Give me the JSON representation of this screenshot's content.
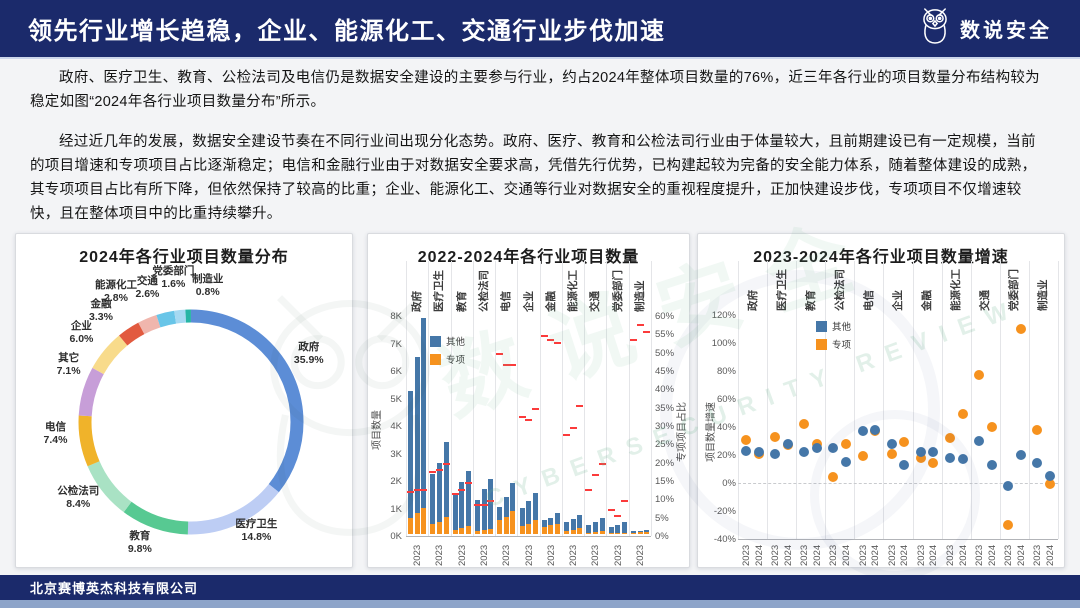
{
  "header": {
    "title": "领先行业增长趋稳，企业、能源化工、交通行业步伐加速",
    "brand": "数说安全"
  },
  "paragraphs": [
    "政府、医疗卫生、教育、公检法司及电信仍是数据安全建设的主要参与行业，约占2024年整体项目数量的76%，近三年各行业的项目数量分布结构较为稳定如图“2024年各行业项目数量分布”所示。",
    "经过近几年的发展，数据安全建设节奏在不同行业间出现分化态势。政府、医疗、教育和公检法司行业由于体量较大，且前期建设已有一定规模，当前的项目增速和专项项目占比逐渐稳定；电信和金融行业由于对数据安全要求高，凭借先行优势，已构建起较为完备的安全能力体系，随着整体建设的成熟，其专项项目占比有所下降，但依然保持了较高的比重；企业、能源化工、交通等行业对数据安全的重视程度提升，正加快建设步伐，专项项目不仅增速较快，且在整体项目中的比重持续攀升。"
  ],
  "footer": {
    "company": "北京赛博英杰科技有限公司"
  },
  "colors": {
    "header_bg": "#1b2a6b",
    "other_blue": "#4577a8",
    "special_orange": "#f6921e",
    "ratio_dash_red": "#fb3b3b",
    "bottom_strip": "#8da4c9"
  },
  "chart_data": [
    {
      "type": "pie",
      "title": "2024年各行业项目数量分布",
      "unit": "%",
      "slices": [
        {
          "label": "政府",
          "value": 35.9,
          "color": "#5c8dd6"
        },
        {
          "label": "医疗卫生",
          "value": 14.8,
          "color": "#bdcdf4"
        },
        {
          "label": "教育",
          "value": 9.8,
          "color": "#57c992"
        },
        {
          "label": "公检法司",
          "value": 8.4,
          "color": "#a9e2c4"
        },
        {
          "label": "电信",
          "value": 7.4,
          "color": "#f0b32a"
        },
        {
          "label": "其它",
          "value": 7.1,
          "color": "#c79ed8"
        },
        {
          "label": "企业",
          "value": 6.0,
          "color": "#f8db8b"
        },
        {
          "label": "金融",
          "value": 3.3,
          "color": "#e25a3f"
        },
        {
          "label": "能源化工",
          "value": 2.8,
          "color": "#f0b6ad"
        },
        {
          "label": "交通",
          "value": 2.6,
          "color": "#68c5e8"
        },
        {
          "label": "党委部门",
          "value": 1.6,
          "color": "#a6d9f2"
        },
        {
          "label": "制造业",
          "value": 0.8,
          "color": "#27b5a5"
        }
      ]
    },
    {
      "type": "bar",
      "title": "2022-2024年各行业项目数量",
      "ylabel_left": "项目数量",
      "ylabel_right": "专项项目占比",
      "y_left_ticks": [
        "8K",
        "7K",
        "6K",
        "5K",
        "4K",
        "3K",
        "2K",
        "1K",
        "0K"
      ],
      "y_left_max_k": 8,
      "y_right_ticks": [
        "60%",
        "55%",
        "50%",
        "45%",
        "40%",
        "35%",
        "30%",
        "25%",
        "20%",
        "15%",
        "10%",
        "5%",
        "0%"
      ],
      "y_right_max_pct": 60,
      "years": [
        "2022",
        "2023",
        "2024"
      ],
      "x_tick_label": "2023",
      "legend": [
        {
          "label": "其他",
          "color": "#4577a8"
        },
        {
          "label": "专项",
          "color": "#f6921e"
        }
      ],
      "groups": [
        {
          "industry": "政府",
          "total_k": [
            5.2,
            6.45,
            7.85
          ],
          "special_k": [
            0.6,
            0.75,
            0.95
          ],
          "special_pct": [
            11.5,
            12,
            12
          ]
        },
        {
          "industry": "医疗卫生",
          "total_k": [
            2.2,
            2.6,
            3.35
          ],
          "special_k": [
            0.35,
            0.45,
            0.63
          ],
          "special_pct": [
            17,
            17.5,
            19
          ]
        },
        {
          "industry": "教育",
          "total_k": [
            1.5,
            1.9,
            2.3
          ],
          "special_k": [
            0.16,
            0.22,
            0.3
          ],
          "special_pct": [
            11,
            12,
            14
          ]
        },
        {
          "industry": "公检法司",
          "total_k": [
            1.25,
            1.65,
            2.0
          ],
          "special_k": [
            0.1,
            0.13,
            0.17
          ],
          "special_pct": [
            8,
            8,
            9
          ]
        },
        {
          "industry": "电信",
          "total_k": [
            1.0,
            1.35,
            1.85
          ],
          "special_k": [
            0.5,
            0.62,
            0.82
          ],
          "special_pct": [
            49,
            46,
            46
          ]
        },
        {
          "industry": "企业",
          "total_k": [
            0.95,
            1.2,
            1.5
          ],
          "special_k": [
            0.3,
            0.36,
            0.5
          ],
          "special_pct": [
            32,
            31,
            34
          ]
        },
        {
          "industry": "金融",
          "total_k": [
            0.5,
            0.6,
            0.75
          ],
          "special_k": [
            0.26,
            0.31,
            0.38
          ],
          "special_pct": [
            54,
            53,
            52
          ]
        },
        {
          "industry": "能源化工",
          "total_k": [
            0.45,
            0.54,
            0.7
          ],
          "special_k": [
            0.12,
            0.15,
            0.22
          ],
          "special_pct": [
            27,
            29,
            35
          ]
        },
        {
          "industry": "交通",
          "total_k": [
            0.33,
            0.45,
            0.58
          ],
          "special_k": [
            0.05,
            0.08,
            0.12
          ],
          "special_pct": [
            12,
            16,
            19
          ]
        },
        {
          "industry": "党委部门",
          "total_k": [
            0.27,
            0.33,
            0.45
          ],
          "special_k": [
            0.02,
            0.02,
            0.04
          ],
          "special_pct": [
            6.5,
            5,
            9
          ]
        },
        {
          "industry": "制造业",
          "total_k": [
            0.1,
            0.12,
            0.15
          ],
          "special_k": [
            0.05,
            0.06,
            0.07
          ],
          "special_pct": [
            53,
            57,
            55
          ]
        }
      ]
    },
    {
      "type": "scatter",
      "title": "2023-2024年各行业项目数量增速",
      "ylabel": "项目数量增速",
      "y_ticks": [
        "120%",
        "100%",
        "80%",
        "60%",
        "40%",
        "20%",
        "0%",
        "-20%",
        "-40%"
      ],
      "y_max": 120,
      "y_min": -40,
      "years": [
        "2023",
        "2024"
      ],
      "legend": [
        {
          "label": "其他",
          "color": "#4577a8"
        },
        {
          "label": "专项",
          "color": "#f6921e"
        }
      ],
      "groups": [
        {
          "industry": "政府",
          "other_pct": [
            23,
            22
          ],
          "special_pct": [
            31,
            21
          ]
        },
        {
          "industry": "医疗卫生",
          "other_pct": [
            21,
            28
          ],
          "special_pct": [
            33,
            27
          ]
        },
        {
          "industry": "教育",
          "other_pct": [
            22,
            25
          ],
          "special_pct": [
            42,
            28
          ]
        },
        {
          "industry": "公检法司",
          "other_pct": [
            25,
            15
          ],
          "special_pct": [
            4,
            28
          ]
        },
        {
          "industry": "电信",
          "other_pct": [
            37,
            38
          ],
          "special_pct": [
            19,
            37
          ]
        },
        {
          "industry": "企业",
          "other_pct": [
            28,
            13
          ],
          "special_pct": [
            21,
            29
          ]
        },
        {
          "industry": "金融",
          "other_pct": [
            22,
            22
          ],
          "special_pct": [
            18,
            14
          ]
        },
        {
          "industry": "能源化工",
          "other_pct": [
            18,
            17
          ],
          "special_pct": [
            32,
            49
          ]
        },
        {
          "industry": "交通",
          "other_pct": [
            30,
            13
          ],
          "special_pct": [
            77,
            40
          ]
        },
        {
          "industry": "党委部门",
          "other_pct": [
            -2,
            20
          ],
          "special_pct": [
            -30,
            110
          ]
        },
        {
          "industry": "制造业",
          "other_pct": [
            14,
            5
          ],
          "special_pct": [
            38,
            -1
          ]
        }
      ]
    }
  ]
}
